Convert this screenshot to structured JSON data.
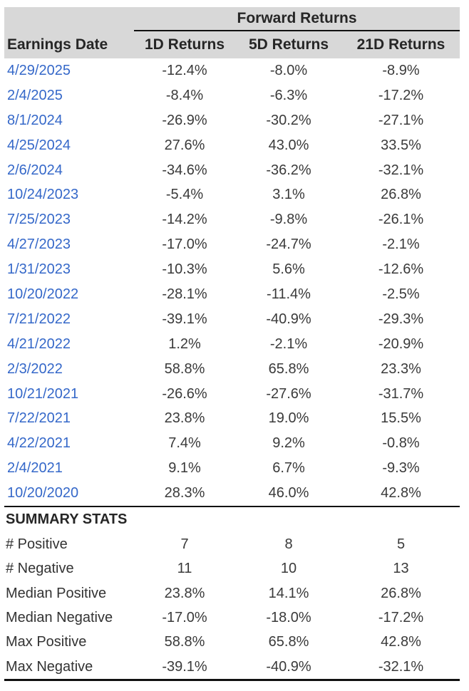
{
  "chart_data": {
    "type": "table",
    "group_header": "Forward Returns",
    "columns": [
      "Earnings Date",
      "1D Returns",
      "5D Returns",
      "21D Returns"
    ],
    "rows": [
      [
        "4/29/2025",
        "-12.4%",
        "-8.0%",
        "-8.9%"
      ],
      [
        "2/4/2025",
        "-8.4%",
        "-6.3%",
        "-17.2%"
      ],
      [
        "8/1/2024",
        "-26.9%",
        "-30.2%",
        "-27.1%"
      ],
      [
        "4/25/2024",
        "27.6%",
        "43.0%",
        "33.5%"
      ],
      [
        "2/6/2024",
        "-34.6%",
        "-36.2%",
        "-32.1%"
      ],
      [
        "10/24/2023",
        "-5.4%",
        "3.1%",
        "26.8%"
      ],
      [
        "7/25/2023",
        "-14.2%",
        "-9.8%",
        "-26.1%"
      ],
      [
        "4/27/2023",
        "-17.0%",
        "-24.7%",
        "-2.1%"
      ],
      [
        "1/31/2023",
        "-10.3%",
        "5.6%",
        "-12.6%"
      ],
      [
        "10/20/2022",
        "-28.1%",
        "-11.4%",
        "-2.5%"
      ],
      [
        "7/21/2022",
        "-39.1%",
        "-40.9%",
        "-29.3%"
      ],
      [
        "4/21/2022",
        "1.2%",
        "-2.1%",
        "-20.9%"
      ],
      [
        "2/3/2022",
        "58.8%",
        "65.8%",
        "23.3%"
      ],
      [
        "10/21/2021",
        "-26.6%",
        "-27.6%",
        "-31.7%"
      ],
      [
        "7/22/2021",
        "23.8%",
        "19.0%",
        "15.5%"
      ],
      [
        "4/22/2021",
        "7.4%",
        "9.2%",
        "-0.8%"
      ],
      [
        "2/4/2021",
        "9.1%",
        "6.7%",
        "-9.3%"
      ],
      [
        "10/20/2020",
        "28.3%",
        "46.0%",
        "42.8%"
      ]
    ],
    "summary_title": "SUMMARY STATS",
    "summary_rows": [
      [
        "# Positive",
        "7",
        "8",
        "5"
      ],
      [
        "# Negative",
        "11",
        "10",
        "13"
      ],
      [
        "Median Positive",
        "23.8%",
        "14.1%",
        "26.8%"
      ],
      [
        "Median Negative",
        "-17.0%",
        "-18.0%",
        "-17.2%"
      ],
      [
        "Max Positive",
        "58.8%",
        "65.8%",
        "42.8%"
      ],
      [
        "Max Negative",
        "-39.1%",
        "-40.9%",
        "-32.1%"
      ]
    ]
  },
  "colors": {
    "header_bg": "#d8d8d8",
    "rule_black": "#111111",
    "date_link_blue": "#3568c9",
    "body_text": "#3a3a3a",
    "header_text": "#262626"
  }
}
